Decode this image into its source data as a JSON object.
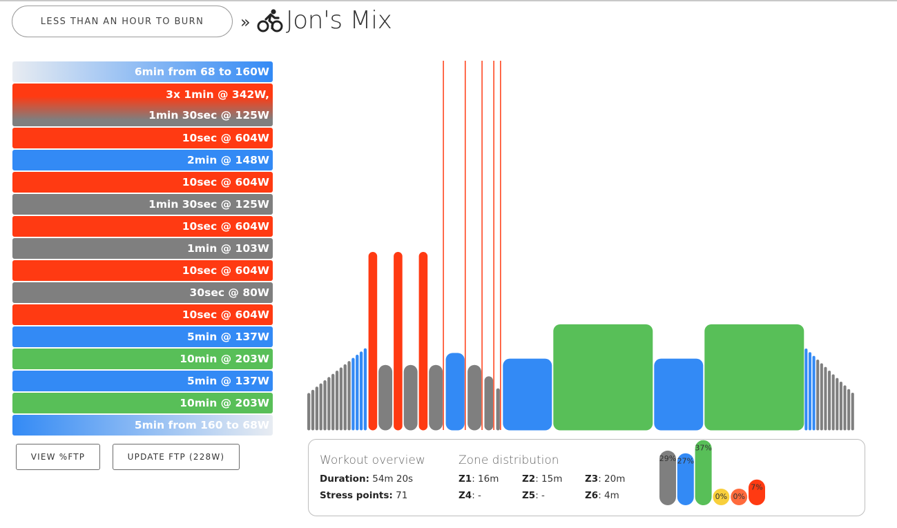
{
  "header": {
    "category_label": "LESS THAN AN HOUR TO BURN",
    "separator": "»",
    "icon": "cyclist-icon",
    "title": "Jon's Mix"
  },
  "segments": [
    {
      "lines": [
        "6min from 68 to 160W"
      ],
      "kind": "ramp-up",
      "minutes": 6,
      "watts_start": 68,
      "watts_end": 160
    },
    {
      "lines": [
        "3x 1min @ 342W,",
        "1min 30sec @ 125W"
      ],
      "kind": "interval",
      "repeat": 3,
      "on_minutes": 1,
      "on_watts": 342,
      "off_minutes": 1.5,
      "off_watts": 125
    },
    {
      "lines": [
        "10sec @ 604W"
      ],
      "kind": "red",
      "minutes": 0.167,
      "watts": 604
    },
    {
      "lines": [
        "2min @ 148W"
      ],
      "kind": "blue",
      "minutes": 2,
      "watts": 148
    },
    {
      "lines": [
        "10sec @ 604W"
      ],
      "kind": "red",
      "minutes": 0.167,
      "watts": 604
    },
    {
      "lines": [
        "1min 30sec @ 125W"
      ],
      "kind": "gray",
      "minutes": 1.5,
      "watts": 125
    },
    {
      "lines": [
        "10sec @ 604W"
      ],
      "kind": "red",
      "minutes": 0.167,
      "watts": 604
    },
    {
      "lines": [
        "1min @ 103W"
      ],
      "kind": "gray",
      "minutes": 1,
      "watts": 103
    },
    {
      "lines": [
        "10sec @ 604W"
      ],
      "kind": "red",
      "minutes": 0.167,
      "watts": 604
    },
    {
      "lines": [
        "30sec @ 80W"
      ],
      "kind": "gray",
      "minutes": 0.5,
      "watts": 80
    },
    {
      "lines": [
        "10sec @ 604W"
      ],
      "kind": "red",
      "minutes": 0.167,
      "watts": 604
    },
    {
      "lines": [
        "5min @ 137W"
      ],
      "kind": "blue",
      "minutes": 5,
      "watts": 137
    },
    {
      "lines": [
        "10min @ 203W"
      ],
      "kind": "green",
      "minutes": 10,
      "watts": 203
    },
    {
      "lines": [
        "5min @ 137W"
      ],
      "kind": "blue",
      "minutes": 5,
      "watts": 137
    },
    {
      "lines": [
        "10min @ 203W"
      ],
      "kind": "green",
      "minutes": 10,
      "watts": 203
    },
    {
      "lines": [
        "5min from 160 to 68W"
      ],
      "kind": "ramp-down",
      "minutes": 5,
      "watts_start": 160,
      "watts_end": 68
    }
  ],
  "buttons": {
    "view_ftp": "VIEW %FTP",
    "update_ftp": "UPDATE FTP (228W)"
  },
  "ftp_watts": 228,
  "colors": {
    "gray": "#7f7f7f",
    "blue": "#338af5",
    "green": "#58bf58",
    "red": "#ff3a12",
    "yellow": "#f8cf3b",
    "orange": "#ff6a3c",
    "ramp_light": "#e8ecf2"
  },
  "overview": {
    "workout_heading": "Workout overview",
    "duration_label": "Duration:",
    "duration_value": "54m 20s",
    "stress_label": "Stress points:",
    "stress_value": "71",
    "zone_heading": "Zone distribution",
    "zones": [
      {
        "label": "Z1",
        "value": "16m"
      },
      {
        "label": "Z2",
        "value": "15m"
      },
      {
        "label": "Z3",
        "value": "20m"
      },
      {
        "label": "Z4",
        "value": "-"
      },
      {
        "label": "Z5",
        "value": "-"
      },
      {
        "label": "Z6",
        "value": "4m"
      }
    ],
    "zone_percents": [
      {
        "label": "29%",
        "percent": 29,
        "color": "#7f7f7f"
      },
      {
        "label": "27%",
        "percent": 27,
        "color": "#338af5"
      },
      {
        "label": "37%",
        "percent": 37,
        "color": "#58bf58"
      },
      {
        "label": "0%",
        "percent": 0,
        "color": "#f8cf3b"
      },
      {
        "label": "0%",
        "percent": 0,
        "color": "#ff6a3c"
      },
      {
        "label": "7%",
        "percent": 7,
        "color": "#ff3a12"
      }
    ]
  }
}
